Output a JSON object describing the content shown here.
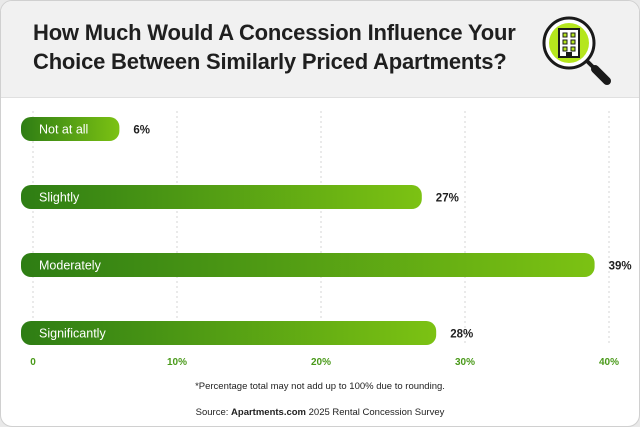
{
  "header": {
    "title": "How Much Would A Concession Influence Your Choice Between Similarly Priced Apartments?"
  },
  "icon": "apartment-magnifier-icon",
  "chart_data": {
    "type": "bar",
    "orientation": "horizontal",
    "categories": [
      "Not at all",
      "Slightly",
      "Moderately",
      "Significantly"
    ],
    "values": [
      6,
      27,
      39,
      28
    ],
    "value_labels": [
      "6%",
      "27%",
      "39%",
      "28%"
    ],
    "x_ticks": [
      "0",
      "10%",
      "20%",
      "30%",
      "40%"
    ],
    "xlim": [
      0,
      40
    ],
    "grid": true,
    "bar_color_start": "#2e7d14",
    "bar_color_end": "#7cc213",
    "tick_color": "#4a9a1a"
  },
  "footnote": "*Percentage total may not add up to 100% due to rounding.",
  "source": {
    "prefix": "Source: ",
    "brand": "Apartments.com",
    "suffix": " 2025 Rental Concession Survey"
  }
}
